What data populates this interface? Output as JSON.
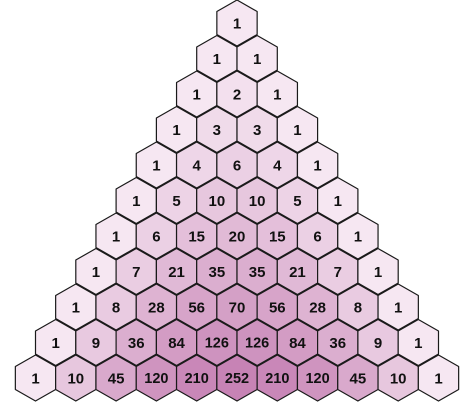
{
  "rows": [
    [
      "1"
    ],
    [
      "1",
      "1"
    ],
    [
      "1",
      "2",
      "1"
    ],
    [
      "1",
      "3",
      "3",
      "1"
    ],
    [
      "1",
      "4",
      "6",
      "4",
      "1"
    ],
    [
      "1",
      "5",
      "10",
      "10",
      "5",
      "1"
    ],
    [
      "1",
      "6",
      "15",
      "20",
      "15",
      "6",
      "1"
    ],
    [
      "1",
      "7",
      "21",
      "35",
      "35",
      "21",
      "7",
      "1"
    ],
    [
      "1",
      "8",
      "28",
      "56",
      "70",
      "56",
      "28",
      "8",
      "1"
    ],
    [
      "1",
      "9",
      "36",
      "84",
      "126",
      "126",
      "84",
      "36",
      "9",
      "1"
    ],
    [
      "1",
      "10",
      "45",
      "120",
      "210",
      "252",
      "210",
      "120",
      "45",
      "10",
      "1"
    ]
  ],
  "colors": {
    "min_fill": "#fbf1f8",
    "max_fill": "#c783b5",
    "stroke": "#1a1a1a",
    "text": "#111111"
  }
}
